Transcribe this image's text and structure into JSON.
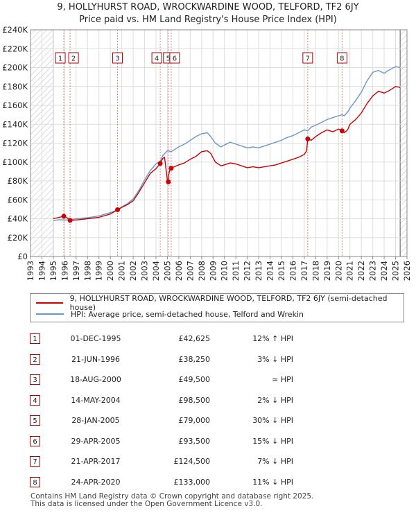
{
  "title_line1": "9, HOLLYHURST ROAD, WROCKWARDINE WOOD, TELFORD, TF2 6JY",
  "title_line2": "Price paid vs. HM Land Registry's House Price Index (HPI)",
  "chart_data": {
    "type": "line",
    "xlim": [
      1993,
      2026
    ],
    "ylim": [
      0,
      240000
    ],
    "x_ticks": [
      "1993",
      "1994",
      "1995",
      "1996",
      "1997",
      "1998",
      "1999",
      "2000",
      "2001",
      "2002",
      "2003",
      "2004",
      "2005",
      "2006",
      "2007",
      "2008",
      "2009",
      "2010",
      "2011",
      "2012",
      "2013",
      "2014",
      "2015",
      "2016",
      "2017",
      "2018",
      "2019",
      "2020",
      "2021",
      "2022",
      "2023",
      "2024",
      "2025",
      "2026"
    ],
    "y_ticks": [
      0,
      20000,
      40000,
      60000,
      80000,
      100000,
      120000,
      140000,
      160000,
      180000,
      200000,
      220000,
      240000
    ],
    "y_tick_labels": [
      "£0",
      "£20K",
      "£40K",
      "£60K",
      "£80K",
      "£100K",
      "£120K",
      "£140K",
      "£160K",
      "£180K",
      "£200K",
      "£220K",
      "£240K"
    ],
    "data_start": 1995.0,
    "data_end": 2025.4,
    "series": [
      {
        "name": "9, HOLLYHURST ROAD, WROCKWARDINE WOOD, TELFORD, TF2 6JY (semi-detached house)",
        "color": "#cc0000",
        "points": [
          [
            1995.0,
            40000
          ],
          [
            1995.5,
            41500
          ],
          [
            1995.92,
            42625
          ],
          [
            1996.2,
            41000
          ],
          [
            1996.47,
            38250
          ],
          [
            1997.0,
            38700
          ],
          [
            1998.0,
            40000
          ],
          [
            1999.0,
            41500
          ],
          [
            2000.0,
            45000
          ],
          [
            2000.63,
            49500
          ],
          [
            2001.0,
            52000
          ],
          [
            2001.5,
            55000
          ],
          [
            2002.0,
            59000
          ],
          [
            2002.5,
            68000
          ],
          [
            2003.0,
            78000
          ],
          [
            2003.5,
            88000
          ],
          [
            2004.0,
            93000
          ],
          [
            2004.37,
            98500
          ],
          [
            2004.6,
            104000
          ],
          [
            2004.75,
            105000
          ],
          [
            2004.8,
            100000
          ],
          [
            2005.0,
            80000
          ],
          [
            2005.08,
            79000
          ],
          [
            2005.1,
            86000
          ],
          [
            2005.2,
            91000
          ],
          [
            2005.33,
            93500
          ],
          [
            2005.6,
            95000
          ],
          [
            2006.0,
            97000
          ],
          [
            2006.5,
            99000
          ],
          [
            2007.0,
            103000
          ],
          [
            2007.5,
            106000
          ],
          [
            2008.0,
            111000
          ],
          [
            2008.5,
            112000
          ],
          [
            2008.8,
            109000
          ],
          [
            2009.2,
            100000
          ],
          [
            2009.7,
            96000
          ],
          [
            2010.0,
            97000
          ],
          [
            2010.5,
            99000
          ],
          [
            2011.0,
            98000
          ],
          [
            2011.5,
            96000
          ],
          [
            2012.0,
            94000
          ],
          [
            2012.5,
            95000
          ],
          [
            2013.0,
            94000
          ],
          [
            2013.5,
            95000
          ],
          [
            2014.0,
            96000
          ],
          [
            2014.5,
            97000
          ],
          [
            2015.0,
            99000
          ],
          [
            2015.5,
            101000
          ],
          [
            2016.0,
            103000
          ],
          [
            2016.5,
            105000
          ],
          [
            2017.0,
            108000
          ],
          [
            2017.2,
            112000
          ],
          [
            2017.3,
            124500
          ],
          [
            2017.6,
            123000
          ],
          [
            2018.0,
            127000
          ],
          [
            2018.5,
            131000
          ],
          [
            2019.0,
            134000
          ],
          [
            2019.5,
            132000
          ],
          [
            2020.0,
            135000
          ],
          [
            2020.31,
            133000
          ],
          [
            2020.5,
            131000
          ],
          [
            2020.8,
            134000
          ],
          [
            2021.0,
            140000
          ],
          [
            2021.5,
            145000
          ],
          [
            2022.0,
            152000
          ],
          [
            2022.5,
            162000
          ],
          [
            2023.0,
            170000
          ],
          [
            2023.5,
            175000
          ],
          [
            2024.0,
            173000
          ],
          [
            2024.5,
            176000
          ],
          [
            2025.0,
            180000
          ],
          [
            2025.4,
            179000
          ]
        ]
      },
      {
        "name": "HPI: Average price, semi-detached house, Telford and Wrekin",
        "color": "#6b96c8",
        "points": [
          [
            1995.0,
            38000
          ],
          [
            1995.5,
            39000
          ],
          [
            1996.0,
            38500
          ],
          [
            1996.5,
            39000
          ],
          [
            1997.0,
            40000
          ],
          [
            1998.0,
            41000
          ],
          [
            1999.0,
            43000
          ],
          [
            2000.0,
            46500
          ],
          [
            2000.63,
            49500
          ],
          [
            2001.0,
            52500
          ],
          [
            2001.5,
            56000
          ],
          [
            2002.0,
            61000
          ],
          [
            2002.5,
            70000
          ],
          [
            2003.0,
            81000
          ],
          [
            2003.5,
            91000
          ],
          [
            2004.0,
            98000
          ],
          [
            2004.37,
            101000
          ],
          [
            2004.6,
            107000
          ],
          [
            2005.0,
            112000
          ],
          [
            2005.33,
            111000
          ],
          [
            2006.0,
            116000
          ],
          [
            2006.5,
            119000
          ],
          [
            2007.0,
            123000
          ],
          [
            2007.5,
            127000
          ],
          [
            2008.0,
            130000
          ],
          [
            2008.5,
            131000
          ],
          [
            2008.8,
            127000
          ],
          [
            2009.2,
            120000
          ],
          [
            2009.7,
            116000
          ],
          [
            2010.0,
            118000
          ],
          [
            2010.5,
            121000
          ],
          [
            2011.0,
            119000
          ],
          [
            2011.5,
            117000
          ],
          [
            2012.0,
            115000
          ],
          [
            2012.5,
            116000
          ],
          [
            2013.0,
            115000
          ],
          [
            2013.5,
            117000
          ],
          [
            2014.0,
            119000
          ],
          [
            2014.5,
            121000
          ],
          [
            2015.0,
            123000
          ],
          [
            2015.5,
            126000
          ],
          [
            2016.0,
            128000
          ],
          [
            2016.5,
            131000
          ],
          [
            2017.0,
            134000
          ],
          [
            2017.3,
            133000
          ],
          [
            2017.6,
            137000
          ],
          [
            2018.0,
            139000
          ],
          [
            2018.5,
            142000
          ],
          [
            2019.0,
            145000
          ],
          [
            2019.5,
            147000
          ],
          [
            2020.0,
            149000
          ],
          [
            2020.31,
            150000
          ],
          [
            2020.5,
            149000
          ],
          [
            2020.8,
            153000
          ],
          [
            2021.0,
            157000
          ],
          [
            2021.5,
            165000
          ],
          [
            2022.0,
            174000
          ],
          [
            2022.5,
            186000
          ],
          [
            2023.0,
            195000
          ],
          [
            2023.5,
            197000
          ],
          [
            2024.0,
            194000
          ],
          [
            2024.5,
            198000
          ],
          [
            2025.0,
            201000
          ],
          [
            2025.4,
            200000
          ]
        ]
      }
    ],
    "sales": [
      {
        "id": "1",
        "x": 1995.92,
        "price": 42625
      },
      {
        "id": "2",
        "x": 1996.47,
        "price": 38250
      },
      {
        "id": "3",
        "x": 2000.63,
        "price": 49500
      },
      {
        "id": "4",
        "x": 2004.37,
        "price": 98500
      },
      {
        "id": "5",
        "x": 2005.08,
        "price": 79000
      },
      {
        "id": "6",
        "x": 2005.33,
        "price": 93500
      },
      {
        "id": "7",
        "x": 2017.3,
        "price": 124500
      },
      {
        "id": "8",
        "x": 2020.31,
        "price": 133000
      }
    ]
  },
  "legend": {
    "property_label": "9, HOLLYHURST ROAD, WROCKWARDINE WOOD, TELFORD, TF2 6JY (semi-detached house)",
    "hpi_label": "HPI: Average price, semi-detached house, Telford and Wrekin",
    "property_color": "#cc0000",
    "hpi_color": "#6b96c8"
  },
  "transactions": [
    {
      "num": "1",
      "date": "01-DEC-1995",
      "price": "£42,625",
      "hpi": "12% ↑ HPI"
    },
    {
      "num": "2",
      "date": "21-JUN-1996",
      "price": "£38,250",
      "hpi": "3% ↓ HPI"
    },
    {
      "num": "3",
      "date": "18-AUG-2000",
      "price": "£49,500",
      "hpi": "≈ HPI"
    },
    {
      "num": "4",
      "date": "14-MAY-2004",
      "price": "£98,500",
      "hpi": "2% ↓ HPI"
    },
    {
      "num": "5",
      "date": "28-JAN-2005",
      "price": "£79,000",
      "hpi": "30% ↓ HPI"
    },
    {
      "num": "6",
      "date": "29-APR-2005",
      "price": "£93,500",
      "hpi": "15% ↓ HPI"
    },
    {
      "num": "7",
      "date": "21-APR-2017",
      "price": "£124,500",
      "hpi": "7% ↓ HPI"
    },
    {
      "num": "8",
      "date": "24-APR-2020",
      "price": "£133,000",
      "hpi": "11% ↓ HPI"
    }
  ],
  "footer_line1": "Contains HM Land Registry data © Crown copyright and database right 2025.",
  "footer_line2": "This data is licensed under the Open Government Licence v3.0."
}
